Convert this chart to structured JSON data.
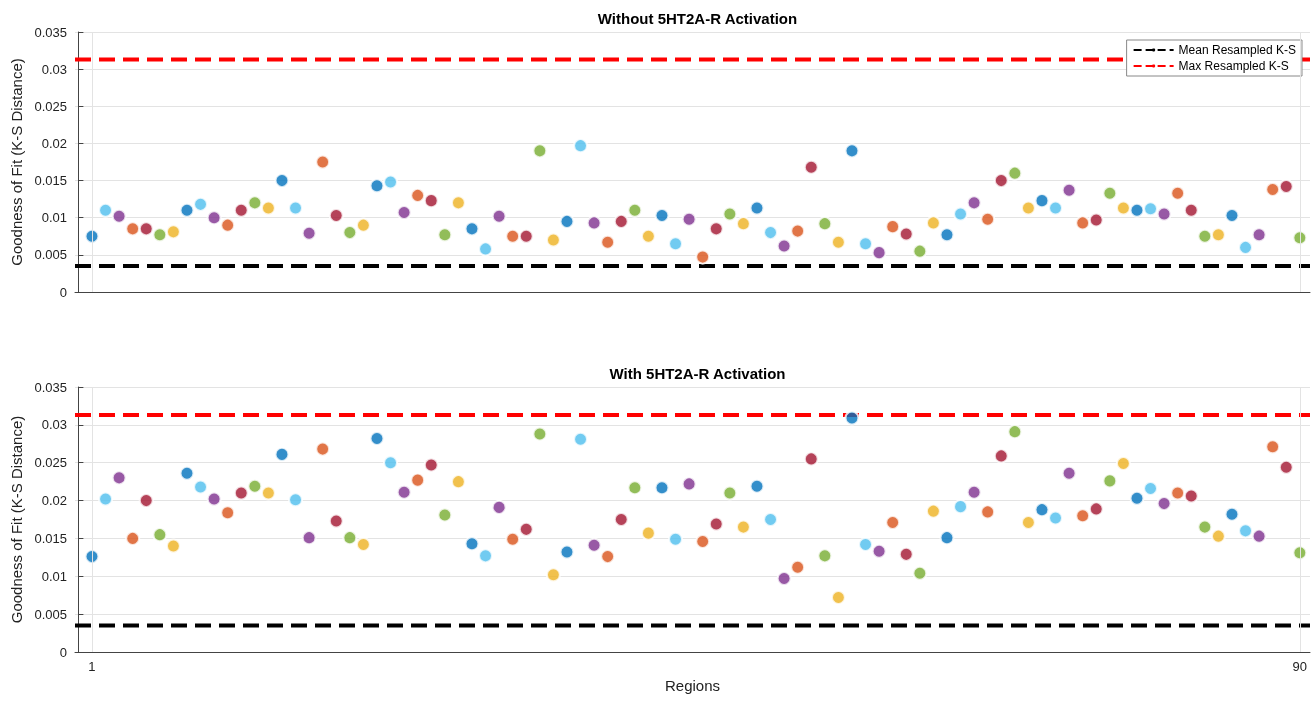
{
  "chart_data": [
    {
      "type": "scatter",
      "title": "Without 5HT2A-R Activation",
      "ylabel": "Goodness of Fit (K-S Distance)",
      "marker": "circle",
      "grid": true,
      "legend": "top right",
      "tick_labels": "y",
      "xlim": [
        -0.25,
        90.75
      ],
      "ylim": [
        0,
        0.035
      ],
      "yticks": [
        0,
        0.005,
        0.01,
        0.015,
        0.02,
        0.025,
        0.03,
        0.035
      ],
      "x": [
        1,
        2,
        3,
        4,
        5,
        6,
        7,
        8,
        9,
        10,
        11,
        12,
        13,
        14,
        15,
        16,
        17,
        18,
        19,
        20,
        21,
        22,
        23,
        24,
        25,
        26,
        27,
        28,
        29,
        30,
        31,
        32,
        33,
        34,
        35,
        36,
        37,
        38,
        39,
        40,
        41,
        42,
        43,
        44,
        45,
        46,
        47,
        48,
        49,
        50,
        51,
        52,
        53,
        54,
        55,
        56,
        57,
        58,
        59,
        60,
        61,
        62,
        63,
        64,
        65,
        66,
        67,
        68,
        69,
        70,
        71,
        72,
        73,
        74,
        75,
        76,
        77,
        78,
        79,
        80,
        81,
        82,
        83,
        84,
        85,
        86,
        87,
        88,
        89,
        90
      ],
      "values": [
        0.0075,
        0.011,
        0.0102,
        0.0085,
        0.0085,
        0.0077,
        0.0081,
        0.011,
        0.0118,
        0.01,
        0.009,
        0.011,
        0.012,
        0.0113,
        0.015,
        0.0113,
        0.0079,
        0.0175,
        0.0103,
        0.008,
        0.009,
        0.0143,
        0.0148,
        0.0107,
        0.013,
        0.0123,
        0.0077,
        0.012,
        0.0085,
        0.0058,
        0.0102,
        0.0075,
        0.0075,
        0.019,
        0.007,
        0.0095,
        0.0197,
        0.0093,
        0.0067,
        0.0095,
        0.011,
        0.0075,
        0.0103,
        0.0065,
        0.0098,
        0.0047,
        0.0085,
        0.0105,
        0.0092,
        0.0113,
        0.008,
        0.0062,
        0.0082,
        0.0168,
        0.0092,
        0.0067,
        0.019,
        0.0065,
        0.0053,
        0.0088,
        0.0078,
        0.0055,
        0.0093,
        0.0077,
        0.0105,
        0.012,
        0.0098,
        0.015,
        0.016,
        0.0113,
        0.0123,
        0.0113,
        0.0137,
        0.0093,
        0.0097,
        0.0133,
        0.0113,
        0.011,
        0.0112,
        0.0105,
        0.0133,
        0.011,
        0.0075,
        0.0077,
        0.0103,
        0.006,
        0.0077,
        0.0138,
        0.0142,
        0.0073
      ],
      "colors": [
        "#0072bd",
        "#4dbeee",
        "#7e2f8e",
        "#d95319",
        "#a2142f",
        "#77ac30",
        "#edb120",
        "#0072bd",
        "#4dbeee",
        "#7e2f8e",
        "#d95319",
        "#a2142f",
        "#77ac30",
        "#edb120",
        "#0072bd",
        "#4dbeee",
        "#7e2f8e",
        "#d95319",
        "#a2142f",
        "#77ac30",
        "#edb120",
        "#0072bd",
        "#4dbeee",
        "#7e2f8e",
        "#d95319",
        "#a2142f",
        "#77ac30",
        "#edb120",
        "#0072bd",
        "#4dbeee",
        "#7e2f8e",
        "#d95319",
        "#a2142f",
        "#77ac30",
        "#edb120",
        "#0072bd",
        "#4dbeee",
        "#7e2f8e",
        "#d95319",
        "#a2142f",
        "#77ac30",
        "#edb120",
        "#0072bd",
        "#4dbeee",
        "#7e2f8e",
        "#d95319",
        "#a2142f",
        "#77ac30",
        "#edb120",
        "#0072bd",
        "#4dbeee",
        "#7e2f8e",
        "#d95319",
        "#a2142f",
        "#77ac30",
        "#edb120",
        "#0072bd",
        "#4dbeee",
        "#7e2f8e",
        "#d95319",
        "#a2142f",
        "#77ac30",
        "#edb120",
        "#0072bd",
        "#4dbeee",
        "#7e2f8e",
        "#d95319",
        "#a2142f",
        "#77ac30",
        "#edb120",
        "#0072bd",
        "#4dbeee",
        "#7e2f8e",
        "#d95319",
        "#a2142f",
        "#77ac30",
        "#edb120",
        "#0072bd",
        "#4dbeee",
        "#7e2f8e",
        "#d95319",
        "#a2142f",
        "#77ac30",
        "#edb120",
        "#0072bd",
        "#4dbeee",
        "#7e2f8e",
        "#d95319",
        "#a2142f",
        "#77ac30"
      ],
      "ref_lines": [
        {
          "axis": "y",
          "value": 0.0035,
          "label": "Mean Resampled K-S",
          "color": "#000000",
          "line_style": "dashed"
        },
        {
          "axis": "y",
          "value": 0.0313,
          "label": "Max Resampled K-S",
          "color": "#ff0000",
          "line_style": "dashed"
        }
      ]
    },
    {
      "type": "scatter",
      "title": "With 5HT2A-R Activation",
      "xlabel": "Regions",
      "ylabel": "Goodness of Fit (K-S Distance)",
      "marker": "circle",
      "grid": true,
      "xlim": [
        -0.25,
        90.75
      ],
      "xticks": [
        1,
        90
      ],
      "ylim": [
        0,
        0.035
      ],
      "yticks": [
        0,
        0.005,
        0.01,
        0.015,
        0.02,
        0.025,
        0.03,
        0.035
      ],
      "x": [
        1,
        2,
        3,
        4,
        5,
        6,
        7,
        8,
        9,
        10,
        11,
        12,
        13,
        14,
        15,
        16,
        17,
        18,
        19,
        20,
        21,
        22,
        23,
        24,
        25,
        26,
        27,
        28,
        29,
        30,
        31,
        32,
        33,
        34,
        35,
        36,
        37,
        38,
        39,
        40,
        41,
        42,
        43,
        44,
        45,
        46,
        47,
        48,
        49,
        50,
        51,
        52,
        53,
        54,
        55,
        56,
        57,
        58,
        59,
        60,
        61,
        62,
        63,
        64,
        65,
        66,
        67,
        68,
        69,
        70,
        71,
        72,
        73,
        74,
        75,
        76,
        77,
        78,
        79,
        80,
        81,
        82,
        83,
        84,
        85,
        86,
        87,
        88,
        89,
        90
      ],
      "values": [
        0.0126,
        0.0202,
        0.023,
        0.015,
        0.02,
        0.0155,
        0.014,
        0.0236,
        0.0218,
        0.0202,
        0.0184,
        0.021,
        0.0219,
        0.021,
        0.0261,
        0.0201,
        0.0151,
        0.0268,
        0.0173,
        0.0151,
        0.0142,
        0.0282,
        0.025,
        0.0211,
        0.0227,
        0.0247,
        0.0181,
        0.0225,
        0.0143,
        0.0127,
        0.0191,
        0.0149,
        0.0162,
        0.0288,
        0.0102,
        0.0132,
        0.0281,
        0.0141,
        0.0126,
        0.0175,
        0.0217,
        0.0157,
        0.0217,
        0.0149,
        0.0222,
        0.0146,
        0.0169,
        0.021,
        0.0165,
        0.0219,
        0.0175,
        0.0097,
        0.0112,
        0.0255,
        0.0127,
        0.0072,
        0.0309,
        0.0142,
        0.0133,
        0.0171,
        0.0129,
        0.0104,
        0.0186,
        0.0151,
        0.0192,
        0.0211,
        0.0185,
        0.0259,
        0.0291,
        0.0171,
        0.0188,
        0.0177,
        0.0236,
        0.018,
        0.0189,
        0.0226,
        0.0249,
        0.0203,
        0.0216,
        0.0196,
        0.021,
        0.0206,
        0.0165,
        0.0153,
        0.0182,
        0.016,
        0.0153,
        0.0271,
        0.0244,
        0.0131
      ],
      "colors": [
        "#0072bd",
        "#4dbeee",
        "#7e2f8e",
        "#d95319",
        "#a2142f",
        "#77ac30",
        "#edb120",
        "#0072bd",
        "#4dbeee",
        "#7e2f8e",
        "#d95319",
        "#a2142f",
        "#77ac30",
        "#edb120",
        "#0072bd",
        "#4dbeee",
        "#7e2f8e",
        "#d95319",
        "#a2142f",
        "#77ac30",
        "#edb120",
        "#0072bd",
        "#4dbeee",
        "#7e2f8e",
        "#d95319",
        "#a2142f",
        "#77ac30",
        "#edb120",
        "#0072bd",
        "#4dbeee",
        "#7e2f8e",
        "#d95319",
        "#a2142f",
        "#77ac30",
        "#edb120",
        "#0072bd",
        "#4dbeee",
        "#7e2f8e",
        "#d95319",
        "#a2142f",
        "#77ac30",
        "#edb120",
        "#0072bd",
        "#4dbeee",
        "#7e2f8e",
        "#d95319",
        "#a2142f",
        "#77ac30",
        "#edb120",
        "#0072bd",
        "#4dbeee",
        "#7e2f8e",
        "#d95319",
        "#a2142f",
        "#77ac30",
        "#edb120",
        "#0072bd",
        "#4dbeee",
        "#7e2f8e",
        "#d95319",
        "#a2142f",
        "#77ac30",
        "#edb120",
        "#0072bd",
        "#4dbeee",
        "#7e2f8e",
        "#d95319",
        "#a2142f",
        "#77ac30",
        "#edb120",
        "#0072bd",
        "#4dbeee",
        "#7e2f8e",
        "#d95319",
        "#a2142f",
        "#77ac30",
        "#edb120",
        "#0072bd",
        "#4dbeee",
        "#7e2f8e",
        "#d95319",
        "#a2142f",
        "#77ac30",
        "#edb120",
        "#0072bd",
        "#4dbeee",
        "#7e2f8e",
        "#d95319",
        "#a2142f",
        "#77ac30"
      ],
      "ref_lines": [
        {
          "axis": "y",
          "value": 0.0035,
          "color": "#000000",
          "line_style": "dashed"
        },
        {
          "axis": "y",
          "value": 0.0313,
          "color": "#ff0000",
          "line_style": "dashed"
        }
      ]
    }
  ]
}
